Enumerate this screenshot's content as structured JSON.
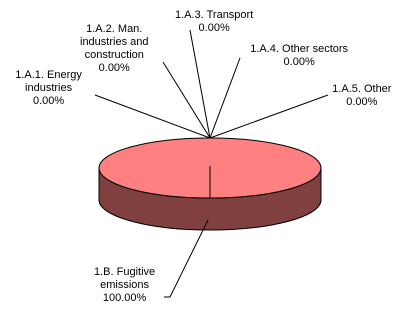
{
  "chart_data": {
    "type": "pie",
    "categories": [
      "1.A.1. Energy industries",
      "1.A.2. Man. industries and construction",
      "1.A.3. Transport",
      "1.A.4. Other sectors",
      "1.A.5. Other",
      "1.B. Fugitive emissions"
    ],
    "values": [
      0.0,
      0.0,
      0.0,
      0.0,
      0.0,
      100.0
    ],
    "labels": [
      {
        "lines": [
          "1.A.1. Energy",
          "industries",
          "0.00%"
        ]
      },
      {
        "lines": [
          "1.A.2. Man.",
          "industries and",
          "construction",
          "0.00%"
        ]
      },
      {
        "lines": [
          "1.A.3. Transport",
          "0.00%"
        ]
      },
      {
        "lines": [
          "1.A.4. Other sectors",
          "0.00%"
        ]
      },
      {
        "lines": [
          "1.A.5. Other",
          "0.00%"
        ]
      },
      {
        "lines": [
          "1.B. Fugitive",
          "emissions",
          "100.00%"
        ]
      }
    ],
    "colors": {
      "top": "#FF8080",
      "side": "#804040",
      "edge": "#000000"
    },
    "style": "3d-pie"
  }
}
